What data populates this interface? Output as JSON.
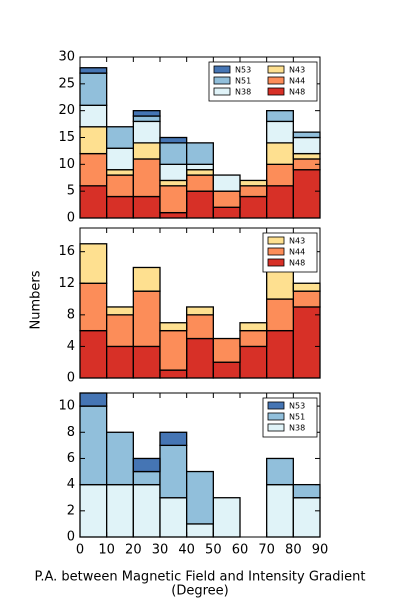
{
  "chart_data": [
    {
      "type": "histogram",
      "bins": [
        0,
        10,
        20,
        30,
        40,
        50,
        60,
        70,
        80,
        90
      ],
      "xlim": [
        0,
        90
      ],
      "ylim": [
        0,
        30
      ],
      "yticks": [
        0,
        5,
        10,
        15,
        20,
        25,
        30
      ],
      "legend": "upper right",
      "legend_columns": 2,
      "series": [
        {
          "name": "N48",
          "color": "#d73027",
          "values": [
            6,
            4,
            4,
            1,
            5,
            2,
            4,
            6,
            9
          ]
        },
        {
          "name": "N44",
          "color": "#fc8d59",
          "values": [
            6,
            4,
            7,
            5,
            3,
            3,
            2,
            4,
            2
          ]
        },
        {
          "name": "N43",
          "color": "#fee090",
          "values": [
            5,
            1,
            3,
            1,
            1,
            0,
            1,
            4,
            1
          ]
        },
        {
          "name": "N38",
          "color": "#e0f3f8",
          "values": [
            4,
            4,
            4,
            3,
            1,
            3,
            0,
            4,
            3
          ]
        },
        {
          "name": "N51",
          "color": "#91bfdb",
          "values": [
            6,
            4,
            1,
            4,
            4,
            0,
            0,
            2,
            1
          ]
        },
        {
          "name": "N53",
          "color": "#4575b4",
          "values": [
            1,
            0,
            1,
            1,
            0,
            0,
            0,
            0,
            0
          ]
        }
      ]
    },
    {
      "type": "histogram",
      "bins": [
        0,
        10,
        20,
        30,
        40,
        50,
        60,
        70,
        80,
        90
      ],
      "xlim": [
        0,
        90
      ],
      "ylim": [
        0,
        19
      ],
      "yticks": [
        0,
        4,
        8,
        12,
        16
      ],
      "legend": "upper right",
      "legend_columns": 1,
      "ylabel": "Numbers",
      "series": [
        {
          "name": "N48",
          "color": "#d73027",
          "values": [
            6,
            4,
            4,
            1,
            5,
            2,
            4,
            6,
            9
          ]
        },
        {
          "name": "N44",
          "color": "#fc8d59",
          "values": [
            6,
            4,
            7,
            5,
            3,
            3,
            2,
            4,
            2
          ]
        },
        {
          "name": "N43",
          "color": "#fee090",
          "values": [
            5,
            1,
            3,
            1,
            1,
            0,
            1,
            4,
            1
          ]
        }
      ]
    },
    {
      "type": "histogram",
      "bins": [
        0,
        10,
        20,
        30,
        40,
        50,
        60,
        70,
        80,
        90
      ],
      "xlim": [
        0,
        90
      ],
      "xticks": [
        0,
        10,
        20,
        30,
        40,
        50,
        60,
        70,
        80,
        90
      ],
      "ylim": [
        0,
        11
      ],
      "yticks": [
        0,
        2,
        4,
        6,
        8,
        10
      ],
      "legend": "upper right",
      "legend_columns": 1,
      "xlabel": [
        "P.A. between Magnetic Field and Intensity Gradient",
        "(Degree)"
      ],
      "series": [
        {
          "name": "N38",
          "color": "#e0f3f8",
          "values": [
            4,
            4,
            4,
            3,
            1,
            3,
            0,
            4,
            3
          ]
        },
        {
          "name": "N51",
          "color": "#91bfdb",
          "values": [
            6,
            4,
            1,
            4,
            4,
            0,
            0,
            2,
            1
          ]
        },
        {
          "name": "N53",
          "color": "#4575b4",
          "values": [
            1,
            0,
            1,
            1,
            0,
            0,
            0,
            0,
            0
          ]
        }
      ]
    }
  ]
}
